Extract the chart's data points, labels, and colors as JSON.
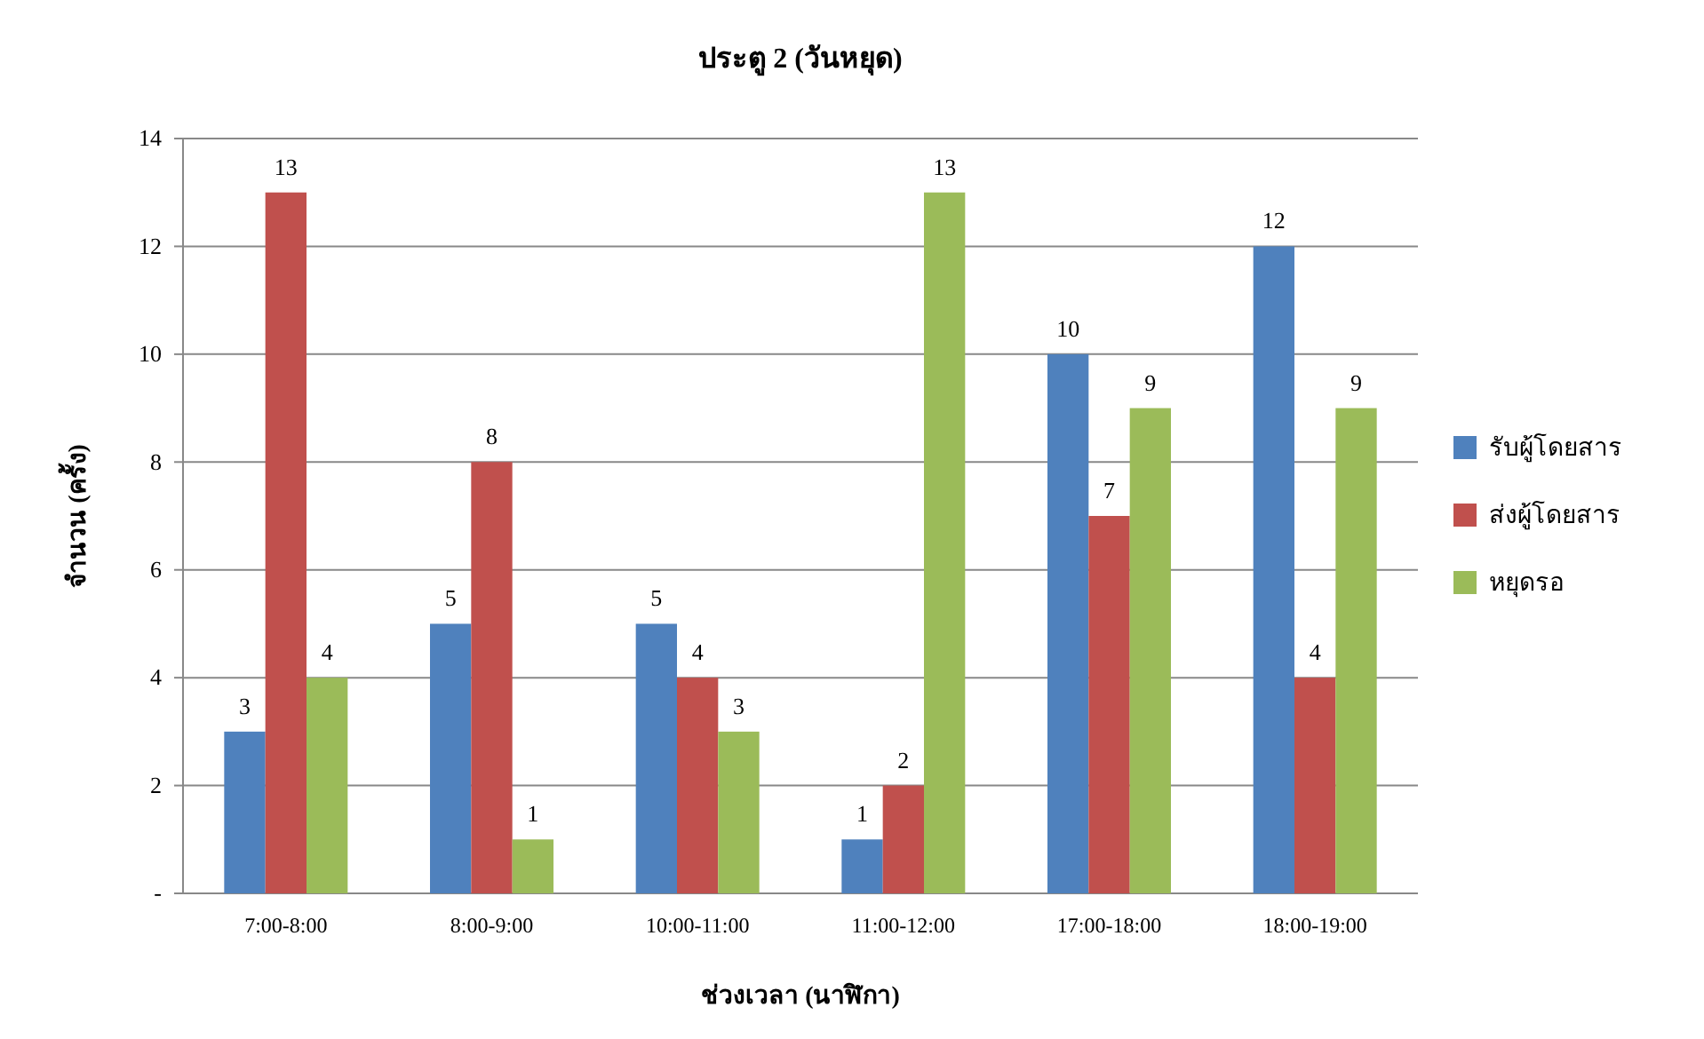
{
  "chart_data": {
    "type": "bar",
    "title": "ประตู 2 (วันหยุด)",
    "xlabel": "ช่วงเวลา (นาฬิกา)",
    "ylabel": "จำนวน (ครั้ง)",
    "categories": [
      "7:00-8:00",
      "8:00-9:00",
      "10:00-11:00",
      "11:00-12:00",
      "17:00-18:00",
      "18:00-19:00"
    ],
    "series": [
      {
        "name": "รับผู้โดยสาร",
        "color": "#4f81bd",
        "values": [
          3,
          5,
          5,
          1,
          10,
          12
        ]
      },
      {
        "name": "ส่งผู้โดยสาร",
        "color": "#c0504d",
        "values": [
          13,
          8,
          4,
          2,
          7,
          4
        ]
      },
      {
        "name": "หยุดรอ",
        "color": "#9bbb59",
        "values": [
          4,
          1,
          3,
          13,
          9,
          9
        ]
      }
    ],
    "ylim": [
      0,
      14
    ],
    "yticks": [
      {
        "value": 0,
        "label": "-"
      },
      2,
      4,
      6,
      8,
      10,
      12,
      14
    ],
    "grid": "y",
    "legend": "right",
    "data_labels": true
  }
}
